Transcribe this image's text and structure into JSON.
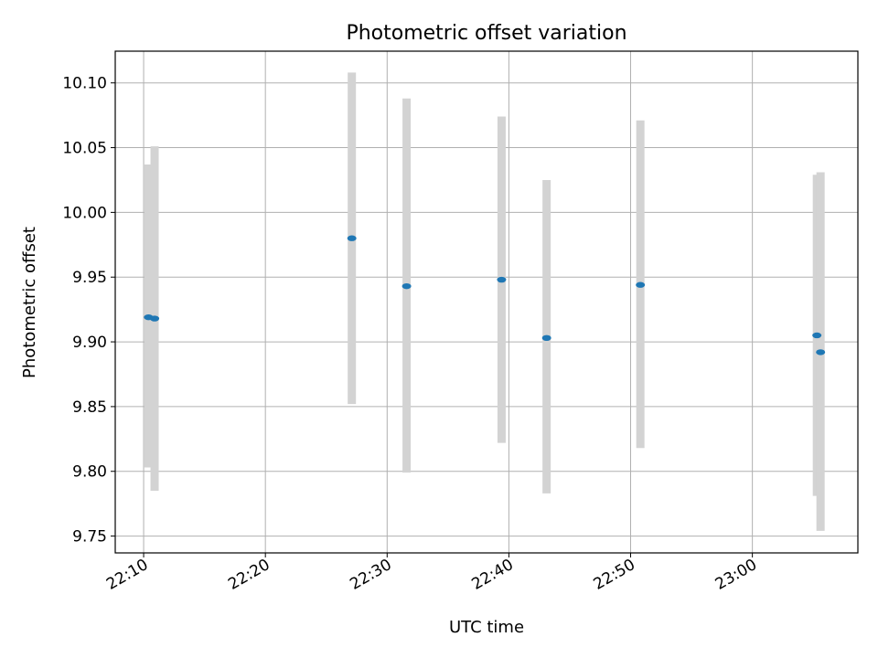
{
  "chart_data": {
    "type": "scatter",
    "title": "Photometric offset variation",
    "xlabel": "UTC time",
    "ylabel": "Photometric offset",
    "x_ticks": [
      "22:10",
      "22:20",
      "22:30",
      "22:40",
      "22:50",
      "23:00"
    ],
    "y_ticks": [
      "9.75",
      "9.80",
      "9.85",
      "9.90",
      "9.95",
      "10.00",
      "10.05",
      "10.10"
    ],
    "xlim": [
      "22:07:40",
      "23:08:40"
    ],
    "ylim": [
      9.737,
      10.1245
    ],
    "grid": true,
    "colors": {
      "point": "#1f77b4",
      "errorbar": "#d3d3d3",
      "grid": "#b0b0b0"
    },
    "points": [
      {
        "x": "22:10:24",
        "y": 9.919,
        "err_low": 9.803,
        "err_high": 10.037
      },
      {
        "x": "22:10:54",
        "y": 9.918,
        "err_low": 9.785,
        "err_high": 10.051
      },
      {
        "x": "22:27:06",
        "y": 9.98,
        "err_low": 9.852,
        "err_high": 10.108
      },
      {
        "x": "22:31:36",
        "y": 9.943,
        "err_low": 9.799,
        "err_high": 10.088
      },
      {
        "x": "22:39:24",
        "y": 9.948,
        "err_low": 9.822,
        "err_high": 10.074
      },
      {
        "x": "22:43:06",
        "y": 9.903,
        "err_low": 9.783,
        "err_high": 10.025
      },
      {
        "x": "22:50:48",
        "y": 9.944,
        "err_low": 9.818,
        "err_high": 10.071
      },
      {
        "x": "23:05:18",
        "y": 9.905,
        "err_low": 9.781,
        "err_high": 10.029
      },
      {
        "x": "23:05:36",
        "y": 9.892,
        "err_low": 9.754,
        "err_high": 10.031
      }
    ]
  }
}
